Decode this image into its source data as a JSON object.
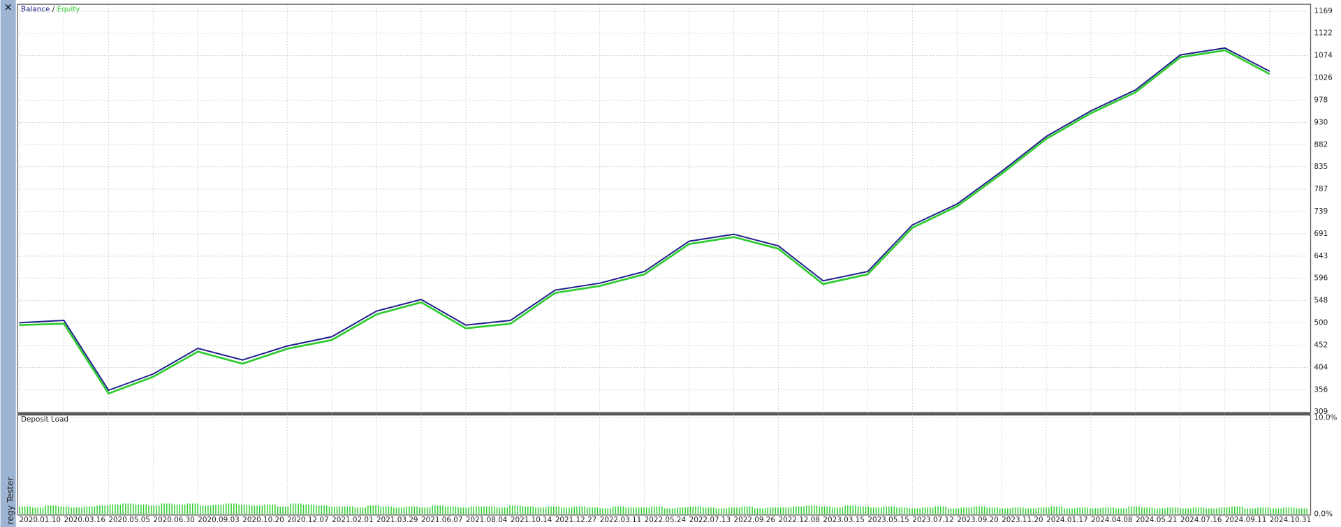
{
  "sidebar": {
    "close": "×",
    "label": "regy Tester"
  },
  "chart_data": [
    {
      "type": "line",
      "legend_separator": "/",
      "x": [
        "2020.01.10",
        "2020.03.16",
        "2020.05.05",
        "2020.06.30",
        "2020.09.03",
        "2020.10.20",
        "2020.12.07",
        "2021.02.01",
        "2021.03.29",
        "2021.06.07",
        "2021.08.04",
        "2021.10.14",
        "2021.12.27",
        "2022.03.11",
        "2022.05.24",
        "2022.07.13",
        "2022.09.26",
        "2022.12.08",
        "2023.03.15",
        "2023.05.15",
        "2023.07.12",
        "2023.09.20",
        "2023.11.20",
        "2024.01.17",
        "2024.04.08",
        "2024.05.21",
        "2024.07.16",
        "2024.09.11",
        "2024.10.31"
      ],
      "series": [
        {
          "name": "Balance",
          "color": "#1c1c8a",
          "values": [
            500,
            505,
            355,
            390,
            445,
            420,
            450,
            470,
            525,
            550,
            495,
            505,
            570,
            585,
            610,
            675,
            690,
            665,
            590,
            610,
            710,
            755,
            825,
            900,
            955,
            1000,
            1075,
            1090,
            1040
          ]
        },
        {
          "name": "Equity",
          "color": "#2ecc2e",
          "values": [
            495,
            498,
            348,
            384,
            438,
            412,
            444,
            463,
            518,
            544,
            488,
            498,
            564,
            579,
            604,
            669,
            684,
            659,
            583,
            604,
            704,
            750,
            820,
            895,
            950,
            995,
            1070,
            1085,
            1034
          ]
        }
      ],
      "ylim": [
        309,
        1182
      ],
      "yticks": [
        1169,
        1122,
        1074,
        1026,
        978,
        930,
        882,
        835,
        787,
        739,
        691,
        643,
        596,
        548,
        500,
        452,
        404,
        356,
        309
      ],
      "grid": true
    },
    {
      "type": "bar",
      "title": "Deposit Load",
      "color": "#2ecc2e",
      "values": [
        0.8,
        0.7,
        0.9,
        0.8,
        0.7,
        0.8,
        0.9,
        1.0,
        1.1,
        1.0,
        0.9,
        1.1,
        1.0,
        1.1,
        0.9,
        1.0,
        1.1,
        1.0,
        0.9,
        1.0,
        0.8,
        1.1,
        1.0,
        0.9,
        0.8,
        0.8,
        0.7,
        0.9,
        0.8,
        0.7,
        0.8,
        0.7,
        0.9,
        0.8,
        0.7,
        0.8,
        0.8,
        0.7,
        0.9,
        0.8,
        0.7,
        0.8,
        0.7,
        0.8,
        0.7,
        0.6,
        0.8,
        0.7,
        0.7,
        0.8,
        0.6,
        0.7,
        0.8,
        0.7,
        0.6,
        0.7,
        0.8,
        0.6,
        0.7,
        0.7,
        0.8,
        0.9,
        0.8,
        0.7,
        0.9,
        0.8,
        0.7,
        0.8,
        0.7,
        0.6,
        0.7,
        0.8,
        0.6,
        0.7,
        0.8,
        0.7,
        0.6,
        0.7,
        0.6,
        0.7,
        0.8,
        0.6,
        0.7,
        0.6,
        0.7,
        0.6,
        0.8,
        0.7,
        0.6,
        0.7,
        0.6,
        0.7,
        0.6,
        0.7,
        0.8,
        0.6,
        0.7,
        0.6,
        0.7,
        0.6
      ],
      "ylim": [
        0,
        10
      ],
      "yticks": [
        {
          "value": 10,
          "label": "10.0%"
        },
        {
          "value": 0,
          "label": "0.0%"
        }
      ],
      "grid": true
    }
  ]
}
